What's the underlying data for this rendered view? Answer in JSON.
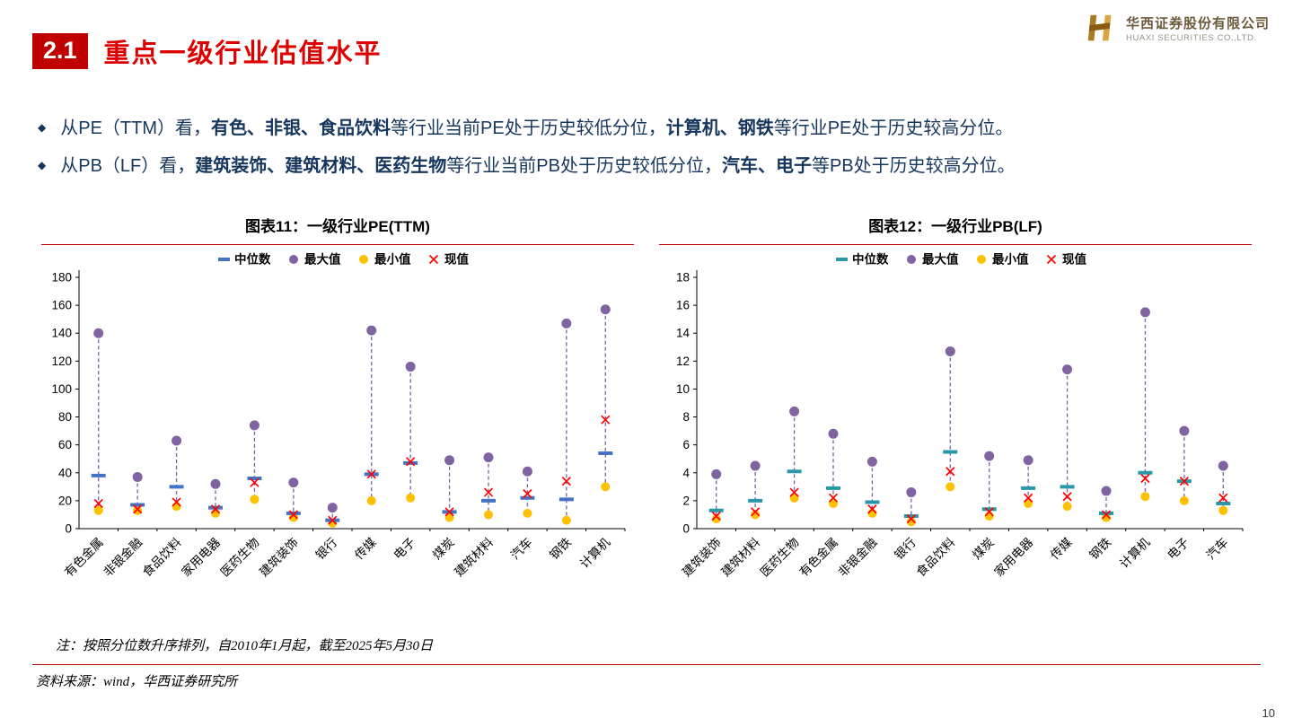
{
  "page": {
    "section_number": "2.1",
    "title": "重点一级行业估值水平",
    "page_number": "10"
  },
  "logo": {
    "cn": "华西证券股份有限公司",
    "en": "HUAXI SECURITIES CO.,LTD."
  },
  "bullets": [
    {
      "segments": [
        {
          "text": "从PE（TTM）看，",
          "bold": false
        },
        {
          "text": "有色、非银、食品饮料",
          "bold": true
        },
        {
          "text": "等行业当前PE处于历史较低分位，",
          "bold": false
        },
        {
          "text": "计算机、钢铁",
          "bold": true
        },
        {
          "text": "等行业PE处于历史较高分位。",
          "bold": false
        }
      ]
    },
    {
      "segments": [
        {
          "text": "从PB（LF）看，",
          "bold": false
        },
        {
          "text": "建筑装饰、建筑材料、医药生物",
          "bold": true
        },
        {
          "text": "等行业当前PB处于历史较低分位，",
          "bold": false
        },
        {
          "text": "汽车、电子",
          "bold": true
        },
        {
          "text": "等PB处于历史较高分位。",
          "bold": false
        }
      ]
    }
  ],
  "chart_data": [
    {
      "type": "scatter",
      "title": "图表11：一级行业PE(TTM)",
      "legend": [
        "中位数",
        "最大值",
        "最小值",
        "现值"
      ],
      "ylim": [
        0,
        180
      ],
      "ystep": 20,
      "grid": false,
      "legend_position": "top-center",
      "colors": {
        "median": "#4472C4",
        "max": "#8064A2",
        "min": "#FFC000",
        "current": "#FF0000",
        "connector": "#7B5EA7"
      },
      "categories": [
        "有色金属",
        "非银金融",
        "食品饮料",
        "家用电器",
        "医药生物",
        "建筑装饰",
        "银行",
        "传媒",
        "电子",
        "煤炭",
        "建筑材料",
        "汽车",
        "钢铁",
        "计算机"
      ],
      "series": [
        {
          "name": "中位数",
          "values": [
            38,
            17,
            30,
            15,
            36,
            11,
            6,
            39,
            47,
            12,
            20,
            22,
            21,
            54
          ]
        },
        {
          "name": "最大值",
          "values": [
            140,
            37,
            63,
            32,
            74,
            33,
            15,
            142,
            116,
            49,
            51,
            41,
            147,
            157
          ]
        },
        {
          "name": "最小值",
          "values": [
            13,
            13,
            16,
            11,
            21,
            8,
            4,
            20,
            22,
            8,
            10,
            11,
            6,
            30
          ]
        },
        {
          "name": "现值",
          "values": [
            18,
            14,
            19,
            14,
            33,
            10,
            6,
            39,
            48,
            12,
            26,
            25,
            34,
            78
          ]
        }
      ]
    },
    {
      "type": "scatter",
      "title": "图表12：一级行业PB(LF)",
      "legend": [
        "中位数",
        "最大值",
        "最小值",
        "现值"
      ],
      "ylim": [
        0,
        18
      ],
      "ystep": 2,
      "grid": false,
      "legend_position": "top-center",
      "colors": {
        "median": "#2898A8",
        "max": "#8064A2",
        "min": "#FFC000",
        "current": "#FF0000",
        "connector": "#7B5EA7"
      },
      "categories": [
        "建筑装饰",
        "建筑材料",
        "医药生物",
        "有色金属",
        "非银金融",
        "银行",
        "食品饮料",
        "煤炭",
        "家用电器",
        "传媒",
        "钢铁",
        "计算机",
        "电子",
        "汽车"
      ],
      "series": [
        {
          "name": "中位数",
          "values": [
            1.3,
            2.0,
            4.1,
            2.9,
            1.9,
            0.9,
            5.5,
            1.4,
            2.9,
            3.0,
            1.1,
            4.0,
            3.4,
            1.8
          ]
        },
        {
          "name": "最大值",
          "values": [
            3.9,
            4.5,
            8.4,
            6.8,
            4.8,
            2.6,
            12.7,
            5.2,
            4.9,
            11.4,
            2.7,
            15.5,
            7.0,
            4.5
          ]
        },
        {
          "name": "最小值",
          "values": [
            0.7,
            1.0,
            2.2,
            1.8,
            1.1,
            0.5,
            3.0,
            0.9,
            1.8,
            1.6,
            0.8,
            2.3,
            2.0,
            1.3
          ]
        },
        {
          "name": "现值",
          "values": [
            0.9,
            1.2,
            2.6,
            2.2,
            1.4,
            0.7,
            4.1,
            1.2,
            2.2,
            2.3,
            1.0,
            3.6,
            3.4,
            2.2
          ]
        }
      ]
    }
  ],
  "footnote": "注：按照分位数升序排列，自2010年1月起，截至2025年5月30日",
  "source": "资料来源：wind，华西证券研究所"
}
